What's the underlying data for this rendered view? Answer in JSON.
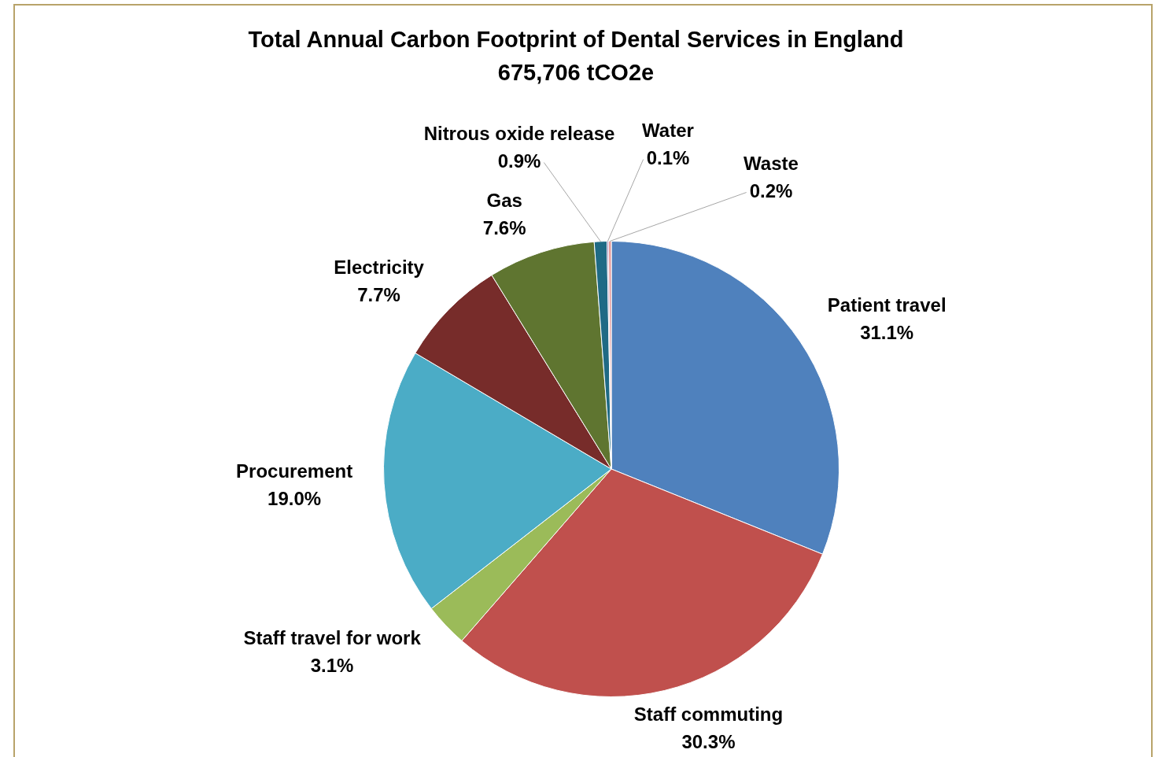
{
  "chart_data": {
    "type": "pie",
    "title": "Total Annual Carbon Footprint of Dental Services in England",
    "subtitle": "675,706 tCO2e",
    "categories": [
      "Patient travel",
      "Staff commuting",
      "Staff travel for work",
      "Procurement",
      "Electricity",
      "Gas",
      "Nitrous oxide release",
      "Water",
      "Waste"
    ],
    "values": [
      31.1,
      30.3,
      3.1,
      19.0,
      7.7,
      7.6,
      0.9,
      0.1,
      0.2
    ],
    "colors": [
      "#4f81bd",
      "#c0504d",
      "#9bbb59",
      "#4bacc6",
      "#772c2a",
      "#5f7530",
      "#1f6a85",
      "#8064a2",
      "#e59a9a"
    ],
    "value_labels": [
      "31.1%",
      "30.3%",
      "3.1%",
      "19.0%",
      "7.7%",
      "7.6%",
      "0.9%",
      "0.1%",
      "0.2%"
    ],
    "legend": false
  }
}
